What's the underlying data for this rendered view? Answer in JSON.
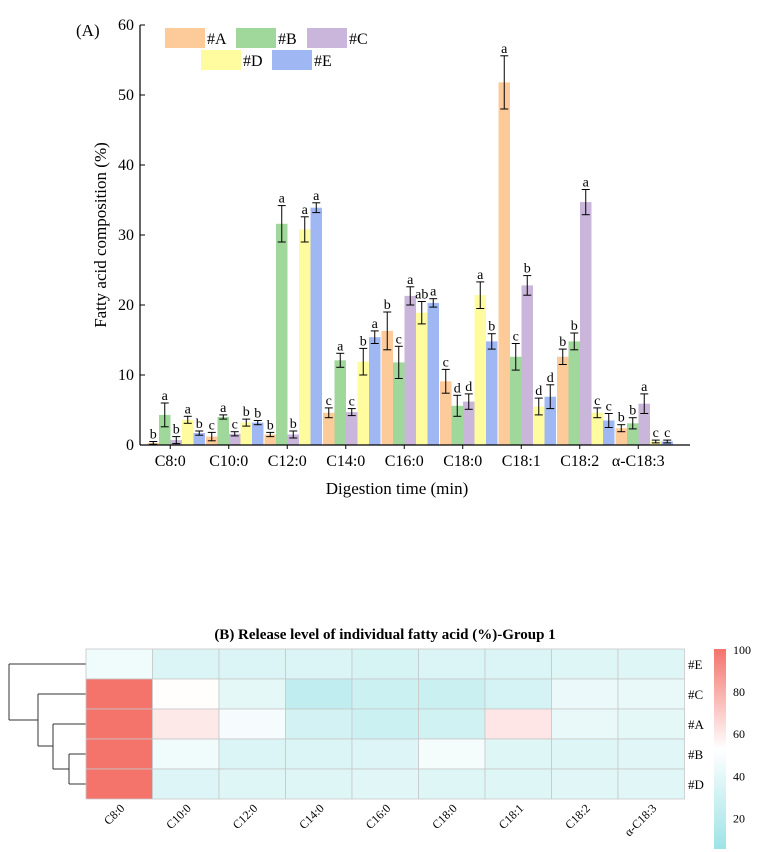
{
  "chart_data": [
    {
      "type": "bar",
      "panel_label": "(A)",
      "title": "",
      "xlabel": "Digestion time (min)",
      "ylabel": "Fatty acid composition (%)",
      "ylim": [
        0,
        60
      ],
      "yticks": [
        "0",
        "10",
        "20",
        "30",
        "40",
        "50",
        "60"
      ],
      "categories": [
        "C8:0",
        "C10:0",
        "C12:0",
        "C14:0",
        "C16:0",
        "C18:0",
        "C18:1",
        "C18:2",
        "α-C18:3"
      ],
      "legend_row1": [
        "#A",
        "#B",
        "#C"
      ],
      "legend_row2": [
        "#D",
        "#E"
      ],
      "series": [
        {
          "name": "#A",
          "color": "#FDCB9A",
          "values": [
            0.3,
            1.2,
            1.5,
            4.6,
            16.3,
            9.1,
            51.8,
            12.6,
            2.4
          ],
          "errors": [
            0.2,
            0.6,
            0.3,
            0.7,
            2.7,
            1.7,
            3.8,
            1.1,
            0.5
          ],
          "letters": [
            "b",
            "c",
            "b",
            "c",
            "b",
            "c",
            "a",
            "b",
            "b"
          ]
        },
        {
          "name": "#B",
          "color": "#9FD89A",
          "values": [
            4.3,
            4.0,
            31.6,
            12.1,
            11.8,
            5.6,
            12.6,
            14.8,
            3.1
          ],
          "errors": [
            1.7,
            0.3,
            2.6,
            1.0,
            2.3,
            1.5,
            1.9,
            1.2,
            0.8
          ],
          "letters": [
            "a",
            "a",
            "a",
            "a",
            "c",
            "d",
            "c",
            "b",
            "b"
          ]
        },
        {
          "name": "#C",
          "color": "#C9B6DA",
          "values": [
            0.7,
            1.6,
            1.5,
            4.7,
            21.3,
            6.2,
            22.8,
            34.7,
            5.9
          ],
          "errors": [
            0.5,
            0.3,
            0.5,
            0.5,
            1.3,
            1.1,
            1.4,
            1.8,
            1.4
          ],
          "letters": [
            "b",
            "c",
            "b",
            "c",
            "a",
            "d",
            "b",
            "a",
            "a"
          ]
        },
        {
          "name": "#D",
          "color": "#FFFCA0",
          "values": [
            3.6,
            3.2,
            30.8,
            11.9,
            18.9,
            21.4,
            5.5,
            4.6,
            0.5
          ],
          "errors": [
            0.5,
            0.5,
            1.8,
            1.9,
            1.6,
            1.9,
            1.2,
            0.7,
            0.2
          ],
          "letters": [
            "a",
            "b",
            "a",
            "b",
            "ab",
            "a",
            "d",
            "c",
            "c"
          ]
        },
        {
          "name": "#E",
          "color": "#9FB8F4",
          "values": [
            1.7,
            3.2,
            33.9,
            15.4,
            20.3,
            14.8,
            6.9,
            3.5,
            0.5
          ],
          "errors": [
            0.3,
            0.3,
            0.7,
            0.9,
            0.6,
            1.1,
            1.7,
            1.0,
            0.2
          ],
          "letters": [
            "b",
            "b",
            "a",
            "a",
            "a",
            "b",
            "d",
            "c",
            "c"
          ]
        }
      ]
    },
    {
      "type": "heatmap",
      "title": "(B) Release level of individual fatty acid (%)-Group 1",
      "columns": [
        "C8:0",
        "C10:0",
        "C12:0",
        "C14:0",
        "C16:0",
        "C18:0",
        "C18:1",
        "C18:2",
        "α-C18:3"
      ],
      "rows": [
        "#E",
        "#C",
        "#A",
        "#B",
        "#D"
      ],
      "values": [
        [
          45,
          35,
          35,
          35,
          33,
          35,
          35,
          37,
          37
        ],
        [
          100,
          53,
          40,
          22,
          28,
          27,
          32,
          43,
          42
        ],
        [
          100,
          60,
          48,
          31,
          28,
          30,
          61,
          42,
          40
        ],
        [
          100,
          45,
          35,
          35,
          36,
          47,
          37,
          37,
          38
        ],
        [
          100,
          36,
          37,
          37,
          38,
          37,
          37,
          38,
          38
        ]
      ],
      "colorbar": {
        "min": 5,
        "max": 100,
        "ticks": [
          "100",
          "80",
          "60",
          "40",
          "20"
        ],
        "colors": [
          "#F4736B",
          "#FFFFFF",
          "#9DE3E6"
        ]
      }
    }
  ]
}
